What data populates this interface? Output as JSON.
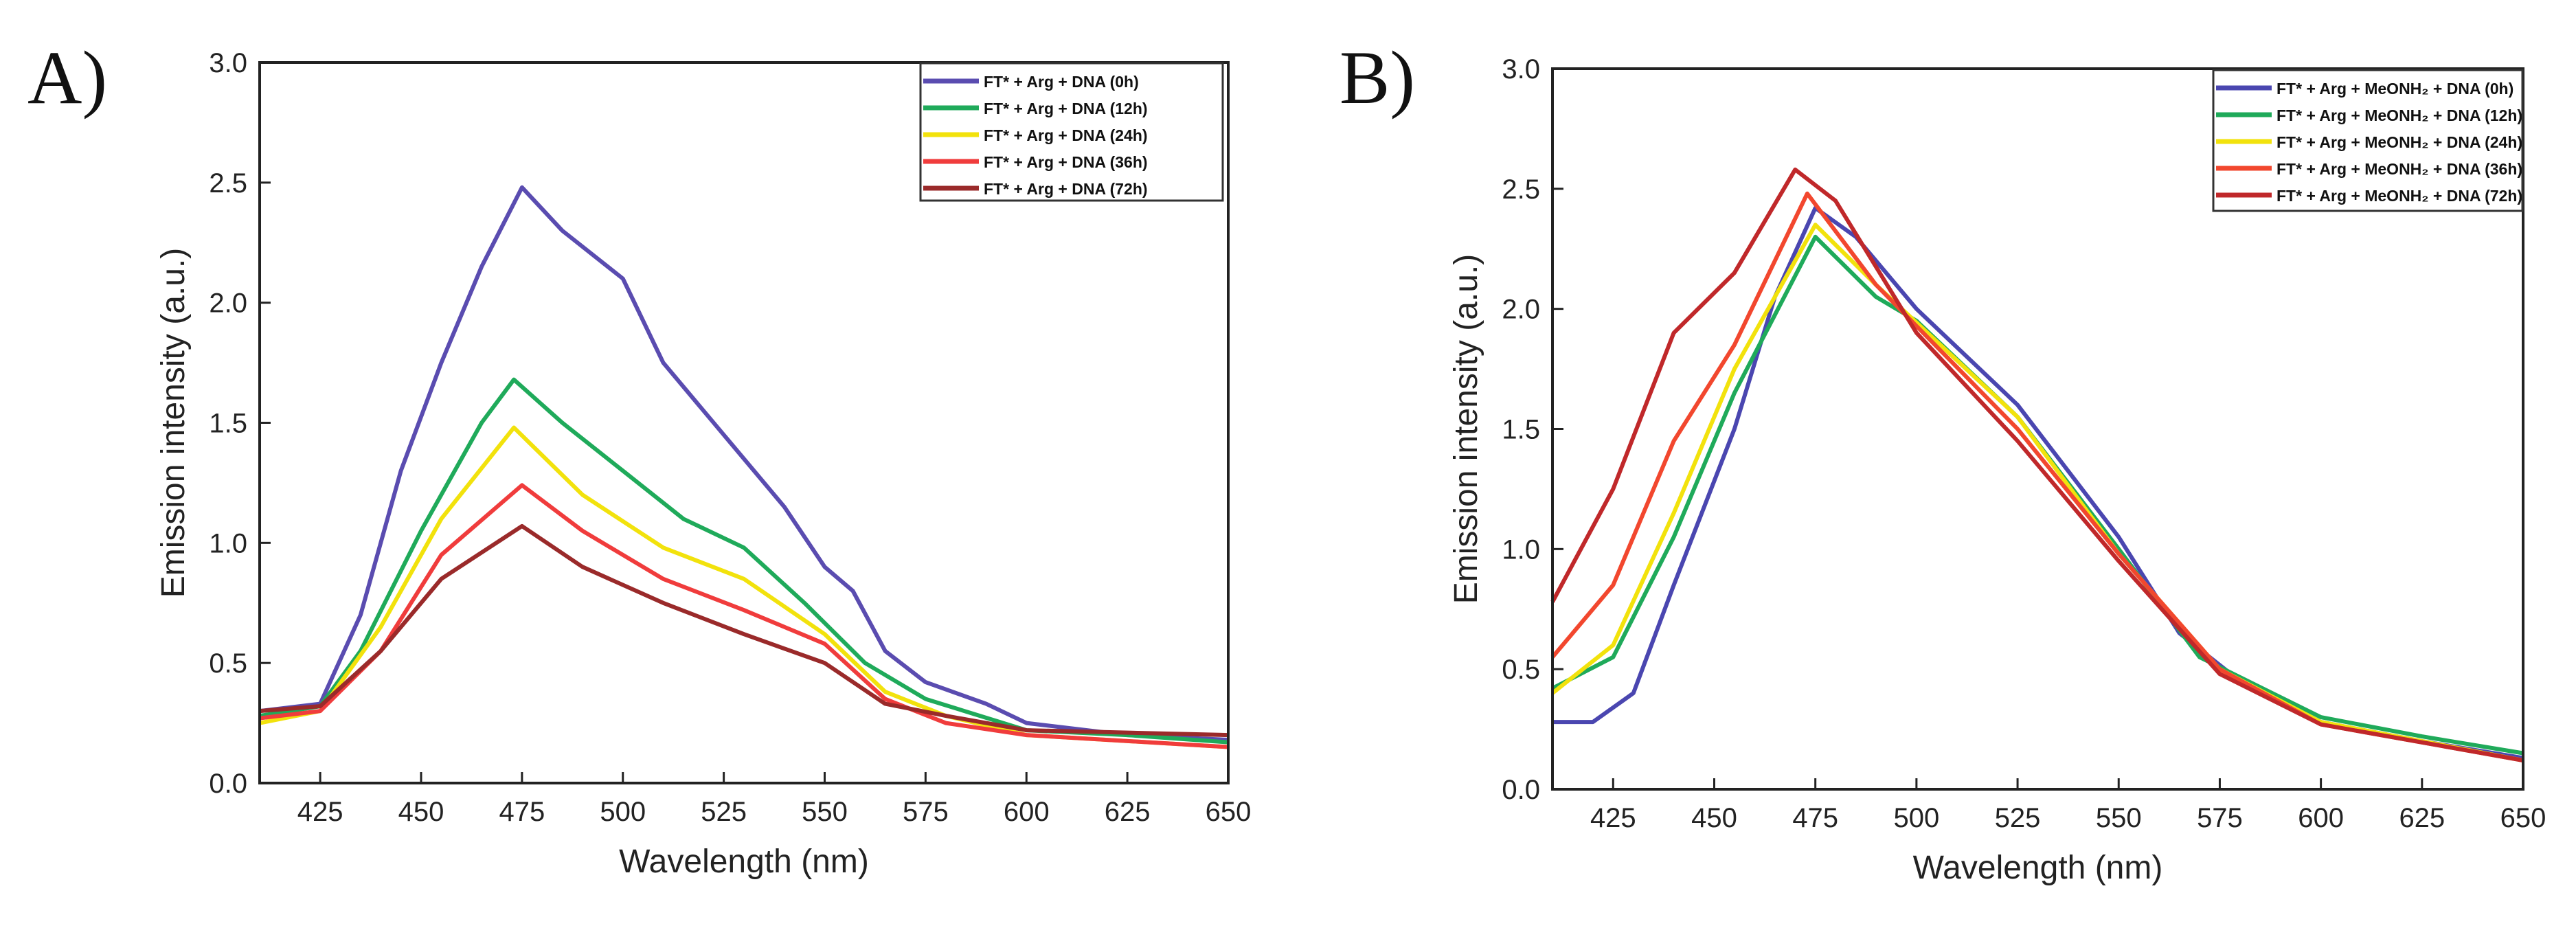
{
  "chart_data": [
    {
      "panel_label": "A)",
      "type": "line",
      "xlabel": "Wavelength (nm)",
      "ylabel": "Emission intensity (a.u.)",
      "xlim": [
        410,
        650
      ],
      "ylim": [
        0,
        3.0
      ],
      "xticks": [
        425,
        450,
        475,
        500,
        525,
        550,
        575,
        600,
        625,
        650
      ],
      "yticks": [
        "0.0",
        "0.5",
        "1.0",
        "1.5",
        "2.0",
        "2.5",
        "3.0"
      ],
      "legend_position": "top-right",
      "series": [
        {
          "name": "FT* + Arg + DNA (0h)",
          "color": "#5a4cb0",
          "x": [
            410,
            425,
            435,
            445,
            455,
            465,
            475,
            485,
            500,
            510,
            525,
            540,
            550,
            557,
            565,
            575,
            590,
            600,
            625,
            650
          ],
          "y": [
            0.3,
            0.33,
            0.7,
            1.3,
            1.75,
            2.15,
            2.48,
            2.3,
            2.1,
            1.75,
            1.45,
            1.15,
            0.9,
            0.8,
            0.55,
            0.42,
            0.33,
            0.25,
            0.2,
            0.18
          ]
        },
        {
          "name": "FT* + Arg + DNA (12h)",
          "color": "#1faa5a",
          "x": [
            410,
            425,
            435,
            450,
            465,
            473,
            485,
            500,
            515,
            530,
            545,
            560,
            575,
            600,
            625,
            650
          ],
          "y": [
            0.28,
            0.32,
            0.55,
            1.05,
            1.5,
            1.68,
            1.5,
            1.3,
            1.1,
            0.98,
            0.75,
            0.5,
            0.35,
            0.22,
            0.2,
            0.17
          ]
        },
        {
          "name": "FT* + Arg + DNA (24h)",
          "color": "#f2e20c",
          "x": [
            410,
            425,
            440,
            455,
            473,
            490,
            510,
            530,
            550,
            565,
            580,
            600,
            650
          ],
          "y": [
            0.25,
            0.3,
            0.65,
            1.1,
            1.48,
            1.2,
            0.98,
            0.85,
            0.62,
            0.38,
            0.28,
            0.2,
            0.15
          ]
        },
        {
          "name": "FT* + Arg + DNA (36h)",
          "color": "#f03c3c",
          "x": [
            410,
            425,
            440,
            455,
            475,
            490,
            510,
            530,
            550,
            565,
            580,
            600,
            650
          ],
          "y": [
            0.27,
            0.3,
            0.55,
            0.95,
            1.24,
            1.05,
            0.85,
            0.72,
            0.58,
            0.35,
            0.25,
            0.2,
            0.15
          ]
        },
        {
          "name": "FT* + Arg + DNA (72h)",
          "color": "#9a2a2a",
          "x": [
            410,
            425,
            440,
            455,
            475,
            490,
            510,
            530,
            550,
            565,
            580,
            600,
            650
          ],
          "y": [
            0.3,
            0.32,
            0.55,
            0.85,
            1.07,
            0.9,
            0.75,
            0.62,
            0.5,
            0.33,
            0.28,
            0.22,
            0.2
          ]
        }
      ]
    },
    {
      "panel_label": "B)",
      "type": "line",
      "xlabel": "Wavelength (nm)",
      "ylabel": "Emission intensity (a.u.)",
      "xlim": [
        410,
        650
      ],
      "ylim": [
        0,
        3.0
      ],
      "xticks": [
        425,
        450,
        475,
        500,
        525,
        550,
        575,
        600,
        625,
        650
      ],
      "yticks": [
        "0.0",
        "0.5",
        "1.0",
        "1.5",
        "2.0",
        "2.5",
        "3.0"
      ],
      "legend_position": "top-right",
      "series": [
        {
          "name": "FT* + Arg + MeONH₂ + DNA (0h)",
          "color": "#4a46b0",
          "x": [
            410,
            420,
            430,
            440,
            455,
            465,
            475,
            485,
            500,
            525,
            550,
            565,
            580,
            600,
            625,
            650
          ],
          "y": [
            0.28,
            0.28,
            0.4,
            0.85,
            1.5,
            2.05,
            2.42,
            2.3,
            2.0,
            1.6,
            1.05,
            0.65,
            0.45,
            0.28,
            0.2,
            0.13
          ]
        },
        {
          "name": "FT* + Arg + MeONH₂ + DNA (12h)",
          "color": "#1faa5a",
          "x": [
            410,
            425,
            440,
            455,
            475,
            490,
            500,
            525,
            550,
            570,
            600,
            625,
            650
          ],
          "y": [
            0.42,
            0.55,
            1.05,
            1.65,
            2.3,
            2.05,
            1.95,
            1.55,
            1.0,
            0.55,
            0.3,
            0.22,
            0.15
          ]
        },
        {
          "name": "FT* + Arg + MeONH₂ + DNA (24h)",
          "color": "#f2e20c",
          "x": [
            410,
            425,
            440,
            455,
            475,
            490,
            525,
            550,
            575,
            600,
            650
          ],
          "y": [
            0.4,
            0.6,
            1.15,
            1.75,
            2.35,
            2.1,
            1.55,
            0.98,
            0.5,
            0.28,
            0.12
          ]
        },
        {
          "name": "FT* + Arg + MeONH₂ + DNA (36h)",
          "color": "#f2472e",
          "x": [
            410,
            425,
            440,
            455,
            473,
            490,
            525,
            550,
            575,
            600,
            650
          ],
          "y": [
            0.55,
            0.85,
            1.45,
            1.85,
            2.48,
            2.1,
            1.5,
            0.98,
            0.5,
            0.27,
            0.12
          ]
        },
        {
          "name": "FT* + Arg + MeONH₂ + DNA (72h)",
          "color": "#c0282a",
          "x": [
            410,
            425,
            440,
            455,
            470,
            480,
            500,
            525,
            550,
            575,
            600,
            650
          ],
          "y": [
            0.78,
            1.25,
            1.9,
            2.15,
            2.58,
            2.45,
            1.9,
            1.45,
            0.95,
            0.48,
            0.27,
            0.12
          ]
        }
      ]
    }
  ]
}
